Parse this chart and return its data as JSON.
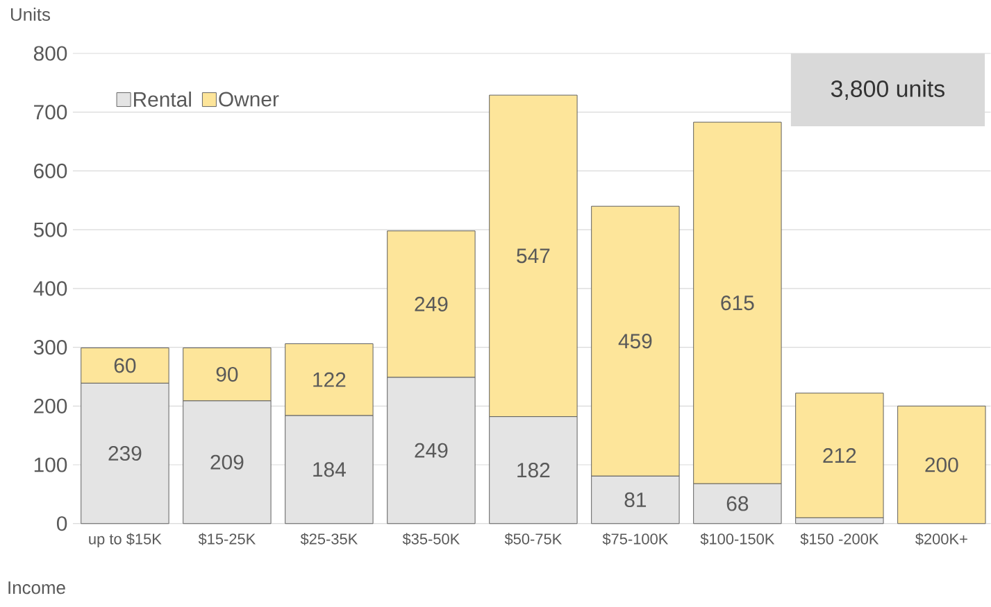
{
  "chart_data": {
    "type": "bar",
    "stacked": true,
    "ylabel": "Units",
    "xlabel": "Income",
    "categories": [
      "up to $15K",
      "$15-25K",
      "$25-35K",
      "$35-50K",
      "$50-75K",
      "$75-100K",
      "$100-150K",
      "$150 -200K",
      "$200K+"
    ],
    "series": [
      {
        "name": "Rental",
        "color": "#e4e4e4",
        "values": [
          239,
          209,
          184,
          249,
          182,
          81,
          68,
          10,
          0
        ],
        "value_labels": [
          "239",
          "209",
          "184",
          "249",
          "182",
          "81",
          "68",
          null,
          null
        ]
      },
      {
        "name": "Owner",
        "color": "#fde59a",
        "values": [
          60,
          90,
          122,
          249,
          547,
          459,
          615,
          212,
          200
        ],
        "value_labels": [
          "60",
          "90",
          "122",
          "249",
          "547",
          "459",
          "615",
          "212",
          "200"
        ]
      }
    ],
    "ylim": [
      0,
      800
    ],
    "yticks": [
      0,
      100,
      200,
      300,
      400,
      500,
      600,
      700,
      800
    ],
    "grid": "y",
    "legend": "top left",
    "annotations": [
      "3,800 units"
    ]
  }
}
